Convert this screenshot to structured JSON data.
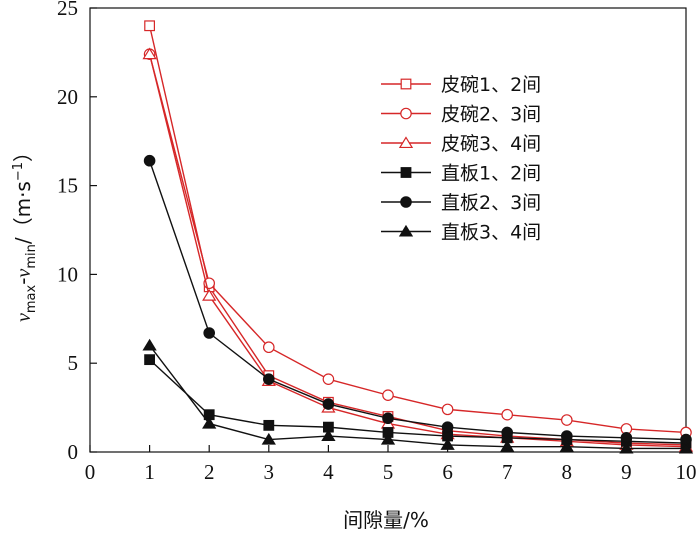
{
  "chart_data": {
    "type": "line",
    "title": "",
    "xlabel": "间隙量/%",
    "ylabel_parts": {
      "v1": "v",
      "sub1": "max",
      "minus": "-",
      "v2": "v",
      "sub2": "min",
      "unit_open": "/（m·s",
      "sup": "−1",
      "unit_close": "）"
    },
    "xlim": [
      0,
      10
    ],
    "ylim": [
      0,
      25
    ],
    "xticks": [
      0,
      1,
      2,
      3,
      4,
      5,
      6,
      7,
      8,
      9,
      10
    ],
    "yticks": [
      0,
      5,
      10,
      15,
      20,
      25
    ],
    "grid": false,
    "legend_position": "top-right",
    "x": [
      1,
      2,
      3,
      4,
      5,
      6,
      7,
      8,
      9,
      10
    ],
    "series": [
      {
        "name": "皮碗1、2间",
        "color": "#d62728",
        "marker": "square-open",
        "values": [
          24.0,
          9.3,
          4.3,
          2.8,
          2.0,
          1.2,
          0.9,
          0.7,
          0.5,
          0.4
        ]
      },
      {
        "name": "皮碗2、3间",
        "color": "#d62728",
        "marker": "circle-open",
        "values": [
          22.4,
          9.5,
          5.9,
          4.1,
          3.2,
          2.4,
          2.1,
          1.8,
          1.3,
          1.1
        ]
      },
      {
        "name": "皮碗3、4间",
        "color": "#d62728",
        "marker": "triangle-open",
        "values": [
          22.4,
          8.8,
          4.0,
          2.5,
          1.6,
          1.0,
          0.8,
          0.6,
          0.4,
          0.3
        ]
      },
      {
        "name": "直板1、2间",
        "color": "#111111",
        "marker": "square-filled",
        "values": [
          5.2,
          2.1,
          1.5,
          1.4,
          1.1,
          0.9,
          0.8,
          0.7,
          0.6,
          0.5
        ]
      },
      {
        "name": "直板2、3间",
        "color": "#111111",
        "marker": "circle-filled",
        "values": [
          16.4,
          6.7,
          4.1,
          2.7,
          1.9,
          1.4,
          1.1,
          0.9,
          0.8,
          0.7
        ]
      },
      {
        "name": "直板3、4间",
        "color": "#111111",
        "marker": "triangle-filled",
        "values": [
          6.0,
          1.6,
          0.7,
          0.9,
          0.7,
          0.4,
          0.3,
          0.3,
          0.2,
          0.2
        ]
      }
    ]
  }
}
